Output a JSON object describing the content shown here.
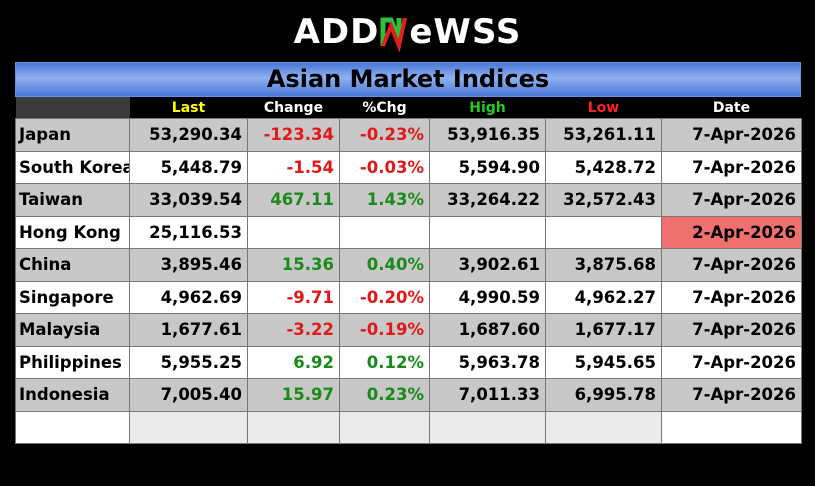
{
  "brand": {
    "prefix": "ADD",
    "middle": "N",
    "suffix": "eWSS"
  },
  "title": "Asian Market Indices",
  "headers": [
    {
      "label": "",
      "color": "#ffffff"
    },
    {
      "label": "Last",
      "color": "#ffff00"
    },
    {
      "label": "Change",
      "color": "#ffffff"
    },
    {
      "label": "%Chg",
      "color": "#ffffff"
    },
    {
      "label": "High",
      "color": "#22cc22"
    },
    {
      "label": "Low",
      "color": "#ff2020"
    },
    {
      "label": "Date",
      "color": "#ffffff"
    }
  ],
  "rows": [
    {
      "name": "Japan",
      "last": "53,290.34",
      "change": "-123.34",
      "pct": "-0.23%",
      "high": "53,916.35",
      "low": "53,261.11",
      "date": "7-Apr-2026",
      "dir": "neg",
      "stale": false
    },
    {
      "name": "South Korea",
      "last": "5,448.79",
      "change": "-1.54",
      "pct": "-0.03%",
      "high": "5,594.90",
      "low": "5,428.72",
      "date": "7-Apr-2026",
      "dir": "neg",
      "stale": false
    },
    {
      "name": "Taiwan",
      "last": "33,039.54",
      "change": "467.11",
      "pct": "1.43%",
      "high": "33,264.22",
      "low": "32,572.43",
      "date": "7-Apr-2026",
      "dir": "pos",
      "stale": false
    },
    {
      "name": "Hong Kong",
      "last": "25,116.53",
      "change": "",
      "pct": "",
      "high": "",
      "low": "",
      "date": "2-Apr-2026",
      "dir": "",
      "stale": true
    },
    {
      "name": "China",
      "last": "3,895.46",
      "change": "15.36",
      "pct": "0.40%",
      "high": "3,902.61",
      "low": "3,875.68",
      "date": "7-Apr-2026",
      "dir": "pos",
      "stale": false
    },
    {
      "name": "Singapore",
      "last": "4,962.69",
      "change": "-9.71",
      "pct": "-0.20%",
      "high": "4,990.59",
      "low": "4,962.27",
      "date": "7-Apr-2026",
      "dir": "neg",
      "stale": false
    },
    {
      "name": "Malaysia",
      "last": "1,677.61",
      "change": "-3.22",
      "pct": "-0.19%",
      "high": "1,687.60",
      "low": "1,677.17",
      "date": "7-Apr-2026",
      "dir": "neg",
      "stale": false
    },
    {
      "name": "Philippines",
      "last": "5,955.25",
      "change": "6.92",
      "pct": "0.12%",
      "high": "5,963.78",
      "low": "5,945.65",
      "date": "7-Apr-2026",
      "dir": "pos",
      "stale": false
    },
    {
      "name": "Indonesia",
      "last": "7,005.40",
      "change": "15.97",
      "pct": "0.23%",
      "high": "7,011.33",
      "low": "6,995.78",
      "date": "7-Apr-2026",
      "dir": "pos",
      "stale": false
    }
  ],
  "colors": {
    "stale": "#f07070",
    "positive": "#1a8a1a",
    "negative": "#e01818",
    "title_bar": "#4a78d8"
  }
}
